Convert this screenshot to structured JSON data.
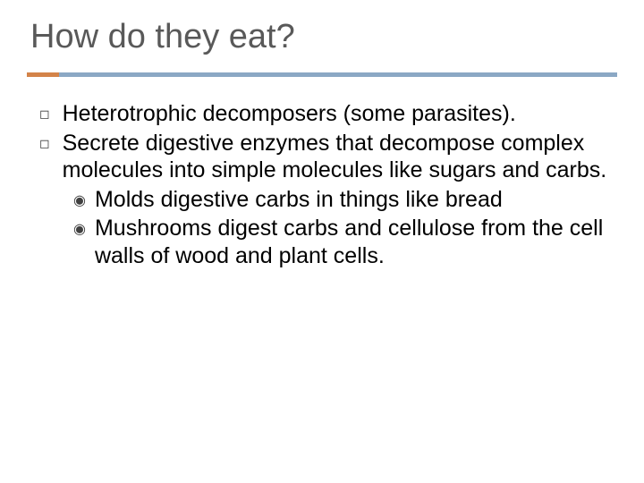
{
  "title": "How do they eat?",
  "divider": {
    "accent_color": "#d38349",
    "main_color": "#8ba8c4"
  },
  "bullets": {
    "b1": "Heterotrophic decomposers (some parasites).",
    "b2": "Secrete digestive enzymes that decompose complex molecules into simple molecules like sugars and carbs.",
    "sub1": "Molds digestive carbs in things like bread",
    "sub2": "Mushrooms digest carbs and cellulose from the cell walls of wood and plant cells."
  },
  "glyphs": {
    "square": "◻",
    "circle": "◉"
  },
  "colors": {
    "title": "#595959",
    "text": "#000000",
    "background": "#ffffff"
  },
  "typography": {
    "title_fontsize": 38,
    "body_fontsize": 25
  }
}
